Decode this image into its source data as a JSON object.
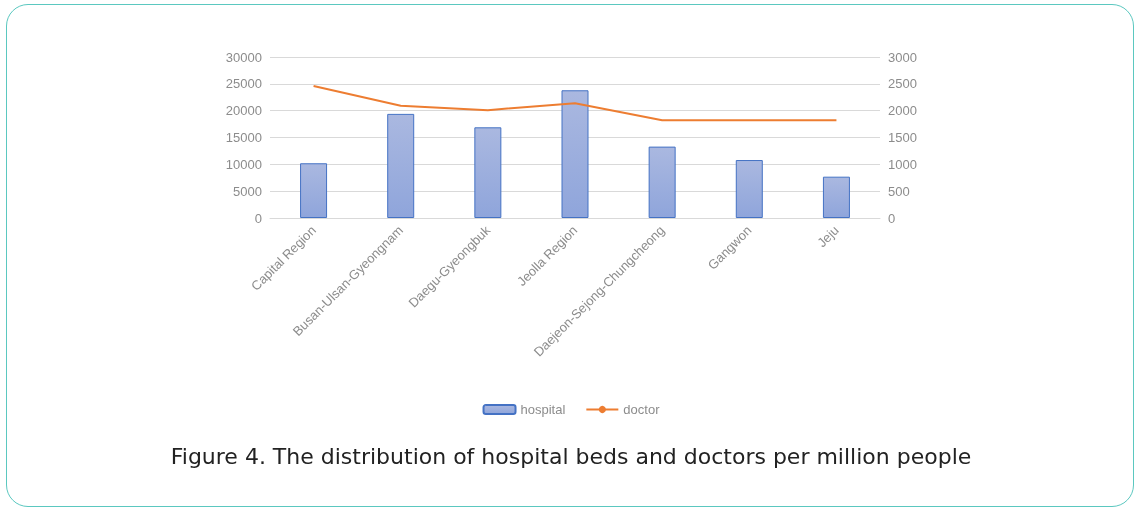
{
  "chart_data": {
    "type": "bar",
    "title": "Figure 4. The distribution of hospital beds and doctors per million people",
    "categories": [
      "Capital Region",
      "Busan-Ulsan-Gyeongnam",
      "Daegu-Gyeongbuk",
      "Jeolla Region",
      "Daejeon-Sejong-Chungcheong",
      "Gangwon",
      "Jeju"
    ],
    "series": [
      {
        "name": "hospital",
        "color": "#4472c4",
        "values": [
          10200,
          19400,
          16900,
          23800,
          13300,
          10800,
          7700
        ]
      },
      {
        "name": "doctor",
        "type": "line",
        "axis": "y2",
        "color": "#ed7d31",
        "values": [
          2460,
          2090,
          2010,
          2140,
          1820,
          1820,
          1820
        ]
      }
    ],
    "ylim": [
      0,
      30000
    ],
    "yticks": [
      0,
      5000,
      10000,
      15000,
      20000,
      25000,
      30000
    ],
    "y2lim": [
      0,
      3000
    ],
    "y2ticks": [
      0,
      500,
      1000,
      1500,
      2000,
      2500,
      3000
    ],
    "grid": "y",
    "legend": "bottom",
    "marker": "none"
  }
}
